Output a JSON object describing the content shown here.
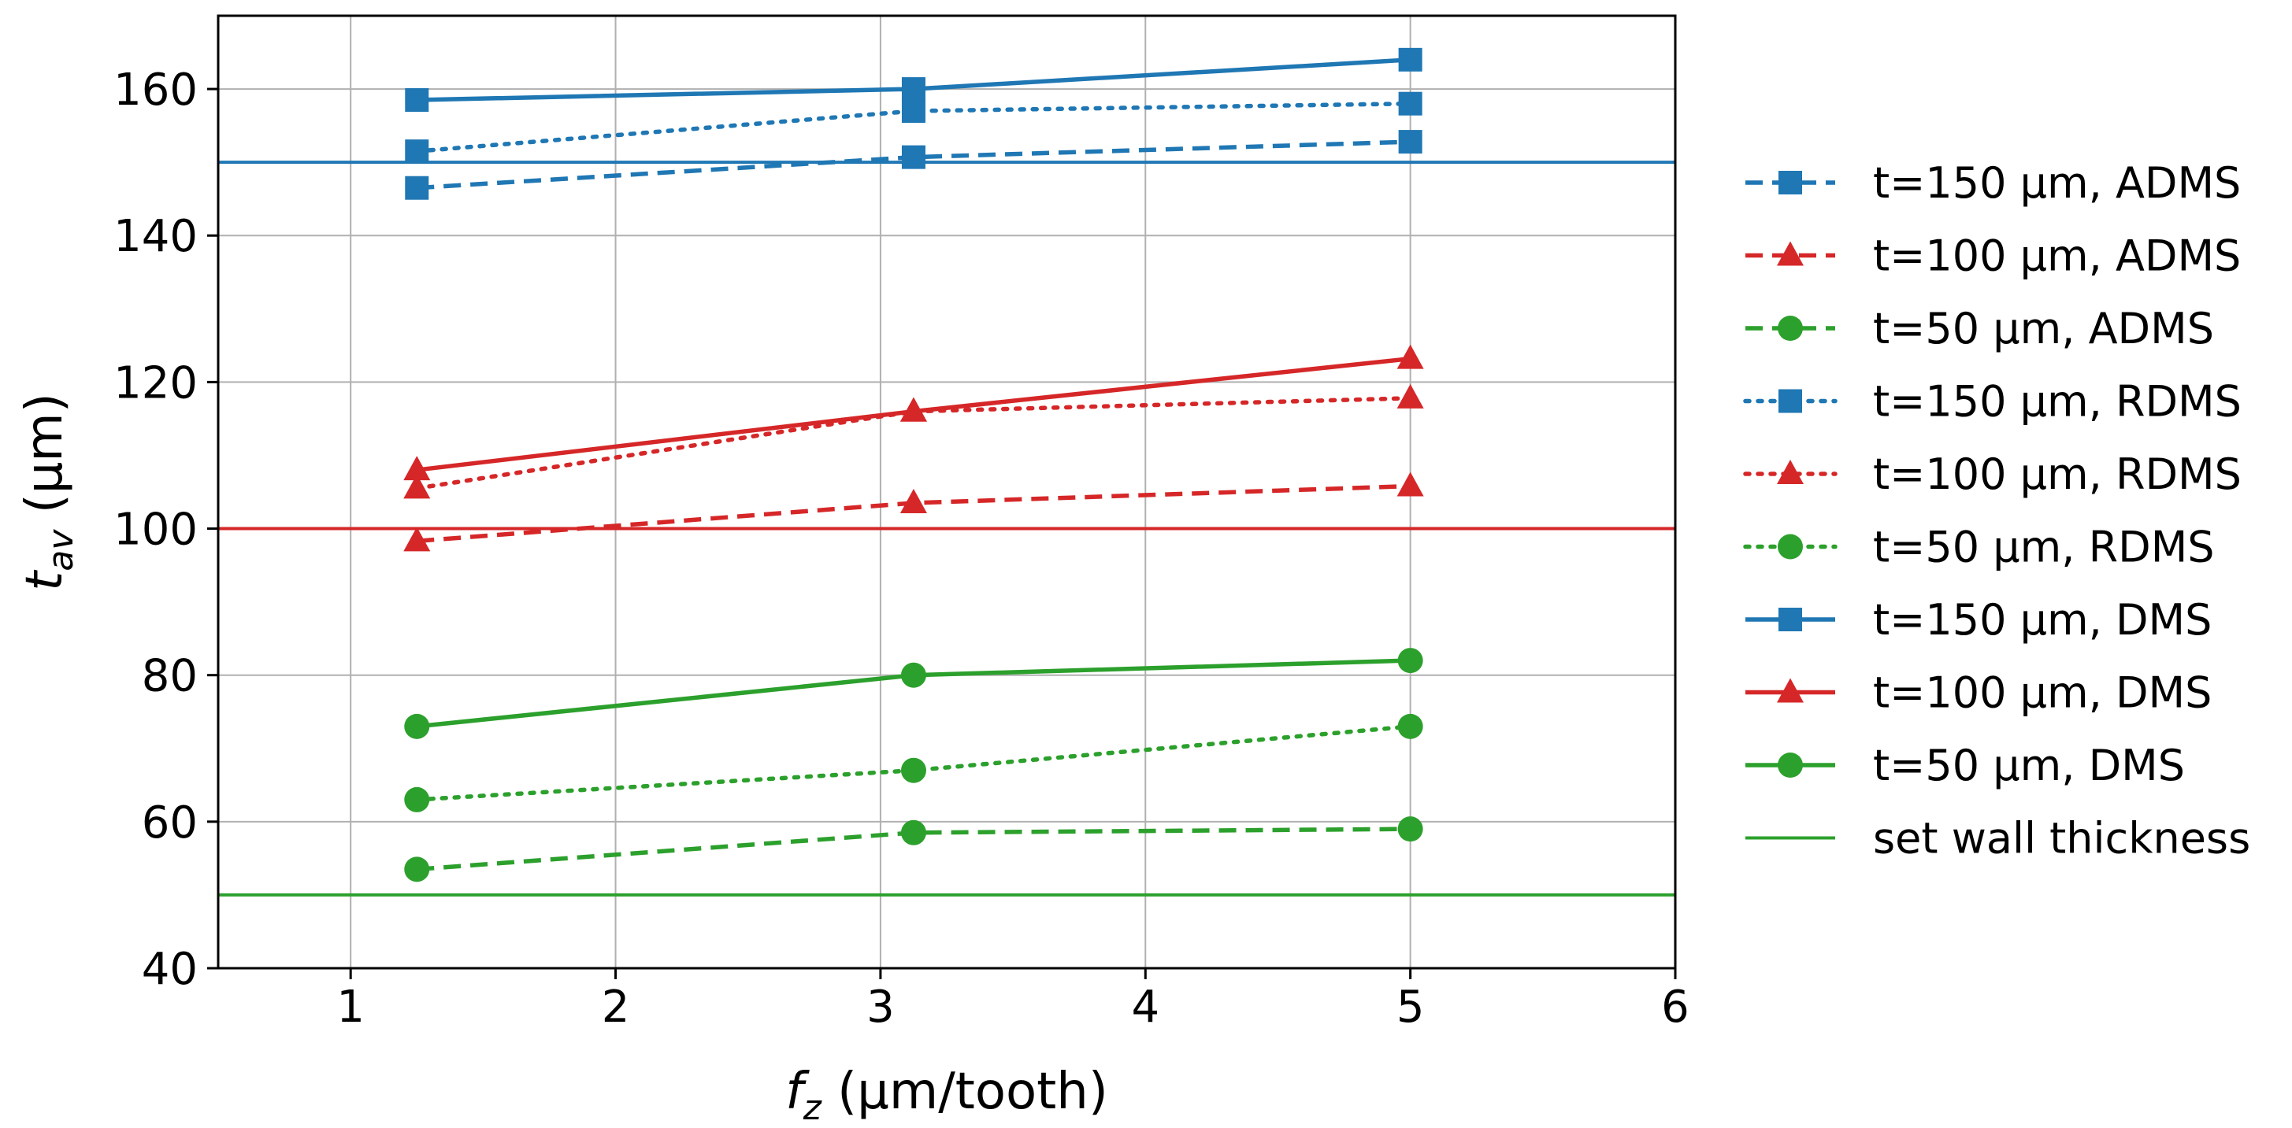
{
  "chart_data": {
    "type": "line",
    "xlabel_main": "f",
    "xlabel_sub": "z",
    "xlabel_unit": " (µm/tooth)",
    "ylabel_main": "t",
    "ylabel_sub": "av",
    "ylabel_unit": " (µm)",
    "xlim": [
      0.5,
      6
    ],
    "ylim": [
      40,
      170
    ],
    "xticks": [
      1,
      2,
      3,
      4,
      5,
      6
    ],
    "yticks": [
      40,
      60,
      80,
      100,
      120,
      140,
      160
    ],
    "grid": true,
    "legend_position": "right, outside",
    "x": [
      1.25,
      3.125,
      5.0
    ],
    "series": [
      {
        "name": "t=150 µm, ADMS",
        "values": [
          146.5,
          150.7,
          152.8
        ],
        "color": "#1f77b4",
        "dash": "dashed",
        "marker": "square"
      },
      {
        "name": "t=100 µm, ADMS",
        "values": [
          98.3,
          103.5,
          105.8
        ],
        "color": "#d62728",
        "dash": "dashed",
        "marker": "triangle"
      },
      {
        "name": "t=50 µm, ADMS",
        "values": [
          53.5,
          58.5,
          59.0
        ],
        "color": "#2ca02c",
        "dash": "dashed",
        "marker": "circle"
      },
      {
        "name": "t=150 µm, RDMS",
        "values": [
          151.5,
          157.0,
          158.0
        ],
        "color": "#1f77b4",
        "dash": "dotted",
        "marker": "square"
      },
      {
        "name": "t=100 µm, RDMS",
        "values": [
          105.5,
          116.0,
          117.8
        ],
        "color": "#d62728",
        "dash": "dotted",
        "marker": "triangle"
      },
      {
        "name": "t=50 µm, RDMS",
        "values": [
          63.0,
          67.0,
          73.0
        ],
        "color": "#2ca02c",
        "dash": "dotted",
        "marker": "circle"
      },
      {
        "name": "t=150 µm, DMS",
        "values": [
          158.5,
          160.0,
          164.0
        ],
        "color": "#1f77b4",
        "dash": "solid",
        "marker": "square"
      },
      {
        "name": "t=100 µm, DMS",
        "values": [
          108.0,
          116.0,
          123.2
        ],
        "color": "#d62728",
        "dash": "solid",
        "marker": "triangle"
      },
      {
        "name": "t=50 µm, DMS",
        "values": [
          73.0,
          80.0,
          82.0
        ],
        "color": "#2ca02c",
        "dash": "solid",
        "marker": "circle"
      }
    ],
    "reference_lines": {
      "name": "set wall thickness",
      "values": [
        150,
        100,
        50
      ],
      "colors": [
        "#1f77b4",
        "#d62728",
        "#2ca02c"
      ],
      "legend_color": "#2ca02c"
    }
  }
}
